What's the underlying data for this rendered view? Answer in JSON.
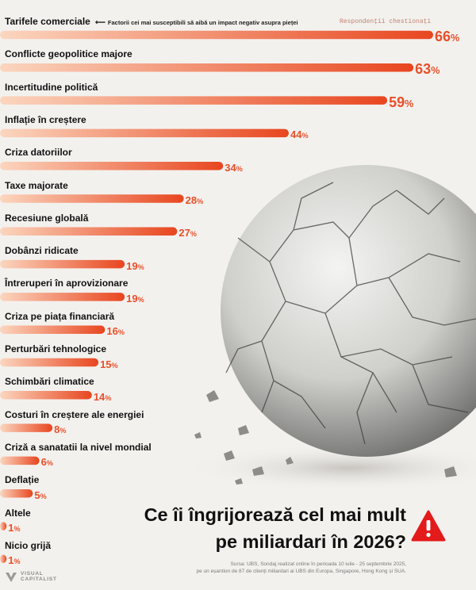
{
  "header": {
    "column_label": "Tarifele comerciale",
    "note": "Factorii cei mai susceptibili să aibă un impact negativ asupra pieței",
    "legend": "Respondenții chestionați"
  },
  "title_line1": "Ce îi îngrijorează cel mai mult",
  "title_line2": "pe miliardari în 2026?",
  "source_line1": "Sursa: UBS, Sondaj realizat online în perioada 10 iulie - 25 septembrie 2025,",
  "source_line2": "pe un eșantion de 87 de clienți miliardari ai UBS din Europa, Singapore, Hong Kong și SUA.",
  "brand_line1": "VISUAL",
  "brand_line2": "CAPITALIST",
  "colors": {
    "accent": "#e8502a",
    "bar_start": "#fbd6bf",
    "bar_end": "#e8461f",
    "warning": "#e31b1b"
  },
  "icons": [
    "left-arrow-icon",
    "warning-icon",
    "visual-capitalist-logo-icon"
  ],
  "chart_data": {
    "type": "bar",
    "orientation": "horizontal",
    "unit": "%",
    "xlim": [
      0,
      66
    ],
    "grid": false,
    "categories": [
      "Tarifele comerciale",
      "Conflicte geopolitice majore",
      "Incertitudine politică",
      "Inflație în creștere",
      "Criza datoriilor",
      "Taxe majorate",
      "Recesiune globală",
      "Dobânzi ridicate",
      "Întreruperi în aprovizionare",
      "Criza pe piața financiară",
      "Perturbări tehnologice",
      "Schimbări climatice",
      "Costuri în creștere ale energiei",
      "Criză a sanatatii la nivel mondial",
      "Deflație",
      "Altele",
      "Nicio grijă"
    ],
    "values": [
      66,
      63,
      59,
      44,
      34,
      28,
      27,
      19,
      19,
      16,
      15,
      14,
      8,
      6,
      5,
      1,
      1
    ]
  }
}
